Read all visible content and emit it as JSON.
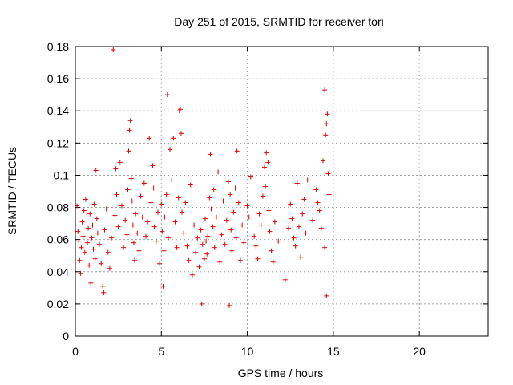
{
  "chart_data": {
    "type": "scatter",
    "title": "Day 251 of 2015, SRMTID for receiver tori",
    "xlabel": "GPS time / hours",
    "ylabel": "SRMTID / TECUs",
    "xlim": [
      0,
      24
    ],
    "ylim": [
      0,
      0.18
    ],
    "x_ticks": [
      0,
      5,
      10,
      15,
      20
    ],
    "y_ticks": [
      0,
      0.02,
      0.04,
      0.06,
      0.08,
      0.1,
      0.12,
      0.14,
      0.16,
      0.18
    ],
    "x_tick_labels": [
      "0",
      "5",
      "10",
      "15",
      "20"
    ],
    "y_tick_labels": [
      "0",
      "0.02",
      "0.04",
      "0.06",
      "0.08",
      "0.1",
      "0.12",
      "0.14",
      "0.16",
      "0.18"
    ],
    "grid": true,
    "marker": "+",
    "color": "#e00000",
    "series": [
      {
        "points": [
          [
            0.1,
            0.081
          ],
          [
            0.15,
            0.065
          ],
          [
            0.2,
            0.059
          ],
          [
            0.25,
            0.047
          ],
          [
            0.3,
            0.039
          ],
          [
            0.35,
            0.055
          ],
          [
            0.4,
            0.071
          ],
          [
            0.45,
            0.062
          ],
          [
            0.5,
            0.078
          ],
          [
            0.55,
            0.052
          ],
          [
            0.6,
            0.085
          ],
          [
            0.7,
            0.058
          ],
          [
            0.75,
            0.067
          ],
          [
            0.8,
            0.044
          ],
          [
            0.85,
            0.076
          ],
          [
            0.9,
            0.033
          ],
          [
            0.95,
            0.061
          ],
          [
            1.0,
            0.069
          ],
          [
            1.05,
            0.054
          ],
          [
            1.1,
            0.082
          ],
          [
            1.15,
            0.048
          ],
          [
            1.2,
            0.103
          ],
          [
            1.25,
            0.073
          ],
          [
            1.3,
            0.064
          ],
          [
            1.4,
            0.057
          ],
          [
            1.5,
            0.045
          ],
          [
            1.6,
            0.031
          ],
          [
            1.65,
            0.027
          ],
          [
            1.7,
            0.066
          ],
          [
            1.8,
            0.079
          ],
          [
            1.9,
            0.052
          ],
          [
            2.0,
            0.042
          ],
          [
            2.1,
            0.061
          ],
          [
            2.2,
            0.178
          ],
          [
            2.3,
            0.075
          ],
          [
            2.35,
            0.104
          ],
          [
            2.4,
            0.088
          ],
          [
            2.5,
            0.068
          ],
          [
            2.6,
            0.108
          ],
          [
            2.7,
            0.081
          ],
          [
            2.8,
            0.055
          ],
          [
            2.9,
            0.072
          ],
          [
            3.0,
            0.063
          ],
          [
            3.05,
            0.091
          ],
          [
            3.1,
            0.115
          ],
          [
            3.15,
            0.128
          ],
          [
            3.2,
            0.134
          ],
          [
            3.25,
            0.098
          ],
          [
            3.3,
            0.084
          ],
          [
            3.35,
            0.069
          ],
          [
            3.4,
            0.058
          ],
          [
            3.45,
            0.047
          ],
          [
            3.5,
            0.076
          ],
          [
            3.6,
            0.064
          ],
          [
            3.7,
            0.053
          ],
          [
            3.8,
            0.087
          ],
          [
            3.9,
            0.074
          ],
          [
            4.0,
            0.095
          ],
          [
            4.1,
            0.062
          ],
          [
            4.2,
            0.071
          ],
          [
            4.3,
            0.123
          ],
          [
            4.4,
            0.083
          ],
          [
            4.5,
            0.106
          ],
          [
            4.55,
            0.092
          ],
          [
            4.6,
            0.068
          ],
          [
            4.7,
            0.059
          ],
          [
            4.8,
            0.077
          ],
          [
            4.9,
            0.045
          ],
          [
            5.0,
            0.082
          ],
          [
            5.05,
            0.065
          ],
          [
            5.1,
            0.031
          ],
          [
            5.15,
            0.053
          ],
          [
            5.2,
            0.074
          ],
          [
            5.3,
            0.088
          ],
          [
            5.35,
            0.15
          ],
          [
            5.4,
            0.061
          ],
          [
            5.5,
            0.116
          ],
          [
            5.6,
            0.097
          ],
          [
            5.7,
            0.123
          ],
          [
            5.8,
            0.071
          ],
          [
            5.9,
            0.055
          ],
          [
            6.0,
            0.086
          ],
          [
            6.05,
            0.14
          ],
          [
            6.1,
            0.141
          ],
          [
            6.15,
            0.126
          ],
          [
            6.2,
            0.077
          ],
          [
            6.3,
            0.064
          ],
          [
            6.4,
            0.083
          ],
          [
            6.5,
            0.056
          ],
          [
            6.6,
            0.047
          ],
          [
            6.7,
            0.094
          ],
          [
            6.8,
            0.038
          ],
          [
            6.9,
            0.069
          ],
          [
            7.0,
            0.052
          ],
          [
            7.1,
            0.061
          ],
          [
            7.2,
            0.043
          ],
          [
            7.3,
            0.066
          ],
          [
            7.35,
            0.02
          ],
          [
            7.4,
            0.057
          ],
          [
            7.5,
            0.048
          ],
          [
            7.55,
            0.073
          ],
          [
            7.6,
            0.059
          ],
          [
            7.65,
            0.051
          ],
          [
            7.7,
            0.062
          ],
          [
            7.8,
            0.086
          ],
          [
            7.85,
            0.113
          ],
          [
            7.9,
            0.079
          ],
          [
            8.0,
            0.068
          ],
          [
            8.05,
            0.091
          ],
          [
            8.1,
            0.055
          ],
          [
            8.2,
            0.074
          ],
          [
            8.3,
            0.102
          ],
          [
            8.4,
            0.046
          ],
          [
            8.5,
            0.063
          ],
          [
            8.6,
            0.084
          ],
          [
            8.7,
            0.057
          ],
          [
            8.8,
            0.072
          ],
          [
            8.9,
            0.096
          ],
          [
            8.95,
            0.019
          ],
          [
            9.0,
            0.088
          ],
          [
            9.05,
            0.066
          ],
          [
            9.1,
            0.053
          ],
          [
            9.2,
            0.077
          ],
          [
            9.3,
            0.092
          ],
          [
            9.35,
            0.061
          ],
          [
            9.4,
            0.115
          ],
          [
            9.5,
            0.083
          ],
          [
            9.6,
            0.047
          ],
          [
            9.7,
            0.069
          ],
          [
            9.8,
            0.058
          ],
          [
            10.0,
            0.081
          ],
          [
            10.1,
            0.074
          ],
          [
            10.2,
            0.099
          ],
          [
            10.4,
            0.062
          ],
          [
            10.5,
            0.056
          ],
          [
            10.6,
            0.048
          ],
          [
            10.7,
            0.076
          ],
          [
            10.8,
            0.069
          ],
          [
            10.9,
            0.087
          ],
          [
            11.0,
            0.105
          ],
          [
            11.05,
            0.093
          ],
          [
            11.1,
            0.114
          ],
          [
            11.2,
            0.108
          ],
          [
            11.25,
            0.078
          ],
          [
            11.3,
            0.065
          ],
          [
            11.4,
            0.053
          ],
          [
            11.5,
            0.046
          ],
          [
            11.6,
            0.071
          ],
          [
            11.8,
            0.059
          ],
          [
            12.2,
            0.035
          ],
          [
            12.4,
            0.067
          ],
          [
            12.5,
            0.082
          ],
          [
            12.6,
            0.073
          ],
          [
            12.7,
            0.061
          ],
          [
            12.8,
            0.056
          ],
          [
            12.9,
            0.095
          ],
          [
            13.0,
            0.068
          ],
          [
            13.1,
            0.049
          ],
          [
            13.2,
            0.076
          ],
          [
            13.3,
            0.085
          ],
          [
            13.4,
            0.064
          ],
          [
            13.5,
            0.097
          ],
          [
            13.8,
            0.072
          ],
          [
            14.0,
            0.091
          ],
          [
            14.1,
            0.083
          ],
          [
            14.2,
            0.078
          ],
          [
            14.3,
            0.067
          ],
          [
            14.4,
            0.109
          ],
          [
            14.5,
            0.153
          ],
          [
            14.55,
            0.125
          ],
          [
            14.6,
            0.132
          ],
          [
            14.65,
            0.138
          ],
          [
            14.7,
            0.101
          ],
          [
            14.75,
            0.088
          ],
          [
            14.6,
            0.025
          ],
          [
            14.5,
            0.055
          ]
        ]
      }
    ]
  }
}
